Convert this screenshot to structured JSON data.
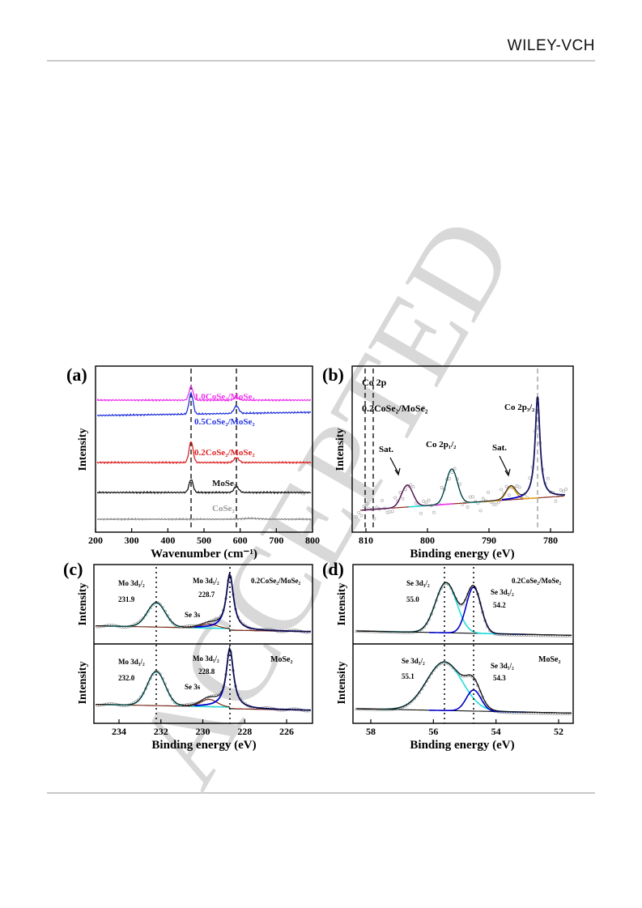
{
  "header": {
    "publisher": "WILEY-VCH",
    "watermark": "ACCEPTED"
  },
  "figure": {
    "panel_a": {
      "label": "(a)",
      "xlabel": "Wavenumber (cm⁻¹)",
      "ylabel": "Intensity",
      "xticks": [
        "200",
        "300",
        "400",
        "500",
        "600",
        "700",
        "800"
      ],
      "series_labels": [
        "1.0CoSe₂/MoSe₂",
        "0.5CoSe₂/MoSe₂",
        "0.2CoSe₂/MoSe₂",
        "MoSe₂",
        "CoSe₂"
      ]
    },
    "panel_b": {
      "label": "(b)",
      "title": "Co 2p",
      "sample": "0.2CoSe₂/MoSe₂",
      "xlabel": "Binding energy (eV)",
      "ylabel": "Intensity",
      "xticks": [
        "810",
        "800",
        "790",
        "780"
      ],
      "peak_labels": [
        "Sat.",
        "Co 2p₁/₂",
        "Sat.",
        "Co 2p₃/₂"
      ]
    },
    "panel_c": {
      "label": "(c)",
      "xlabel": "Binding energy (eV)",
      "ylabel_top": "Intensity",
      "ylabel_bottom": "Intensity",
      "xticks": [
        "234",
        "232",
        "230",
        "228",
        "226"
      ],
      "top": {
        "sample": "0.2CoSe₂/MoSe₂",
        "peak1_name": "Mo 3d₃/₂",
        "peak1_value": "231.9",
        "peak2_name": "Mo 3d₅/₂",
        "peak2_value": "228.7",
        "se_label": "Se 3s"
      },
      "bottom": {
        "sample": "MoSe₂",
        "peak1_name": "Mo 3d₃/₂",
        "peak1_value": "232.0",
        "peak2_name": "Mo 3d₅/₂",
        "peak2_value": "228.8",
        "se_label": "Se 3s"
      }
    },
    "panel_d": {
      "label": "(d)",
      "xlabel": "Binding energy (eV)",
      "ylabel_top": "Intensity",
      "ylabel_bottom": "Intensity",
      "xticks": [
        "58",
        "56",
        "54",
        "52"
      ],
      "top": {
        "sample": "0.2CoSe₂/MoSe₂",
        "peak1_name": "Se 3d₃/₂",
        "peak1_value": "55.0",
        "peak2_name": "Se 3d₅/₂",
        "peak2_value": "54.2"
      },
      "bottom": {
        "sample": "MoSe₂",
        "peak1_name": "Se 3d₃/₂",
        "peak1_value": "55.1",
        "peak2_name": "Se 3d₅/₂",
        "peak2_value": "54.3"
      }
    }
  },
  "colors": {
    "magenta": "#ee33ee",
    "blue": "#2233dd",
    "red": "#dd2222",
    "black": "#111111",
    "gray": "#888888",
    "cyan": "#22dddd",
    "navy": "#0000cc",
    "brown": "#7a2a1a",
    "orange": "#e0a020",
    "watermark": "#d8d8d8"
  }
}
